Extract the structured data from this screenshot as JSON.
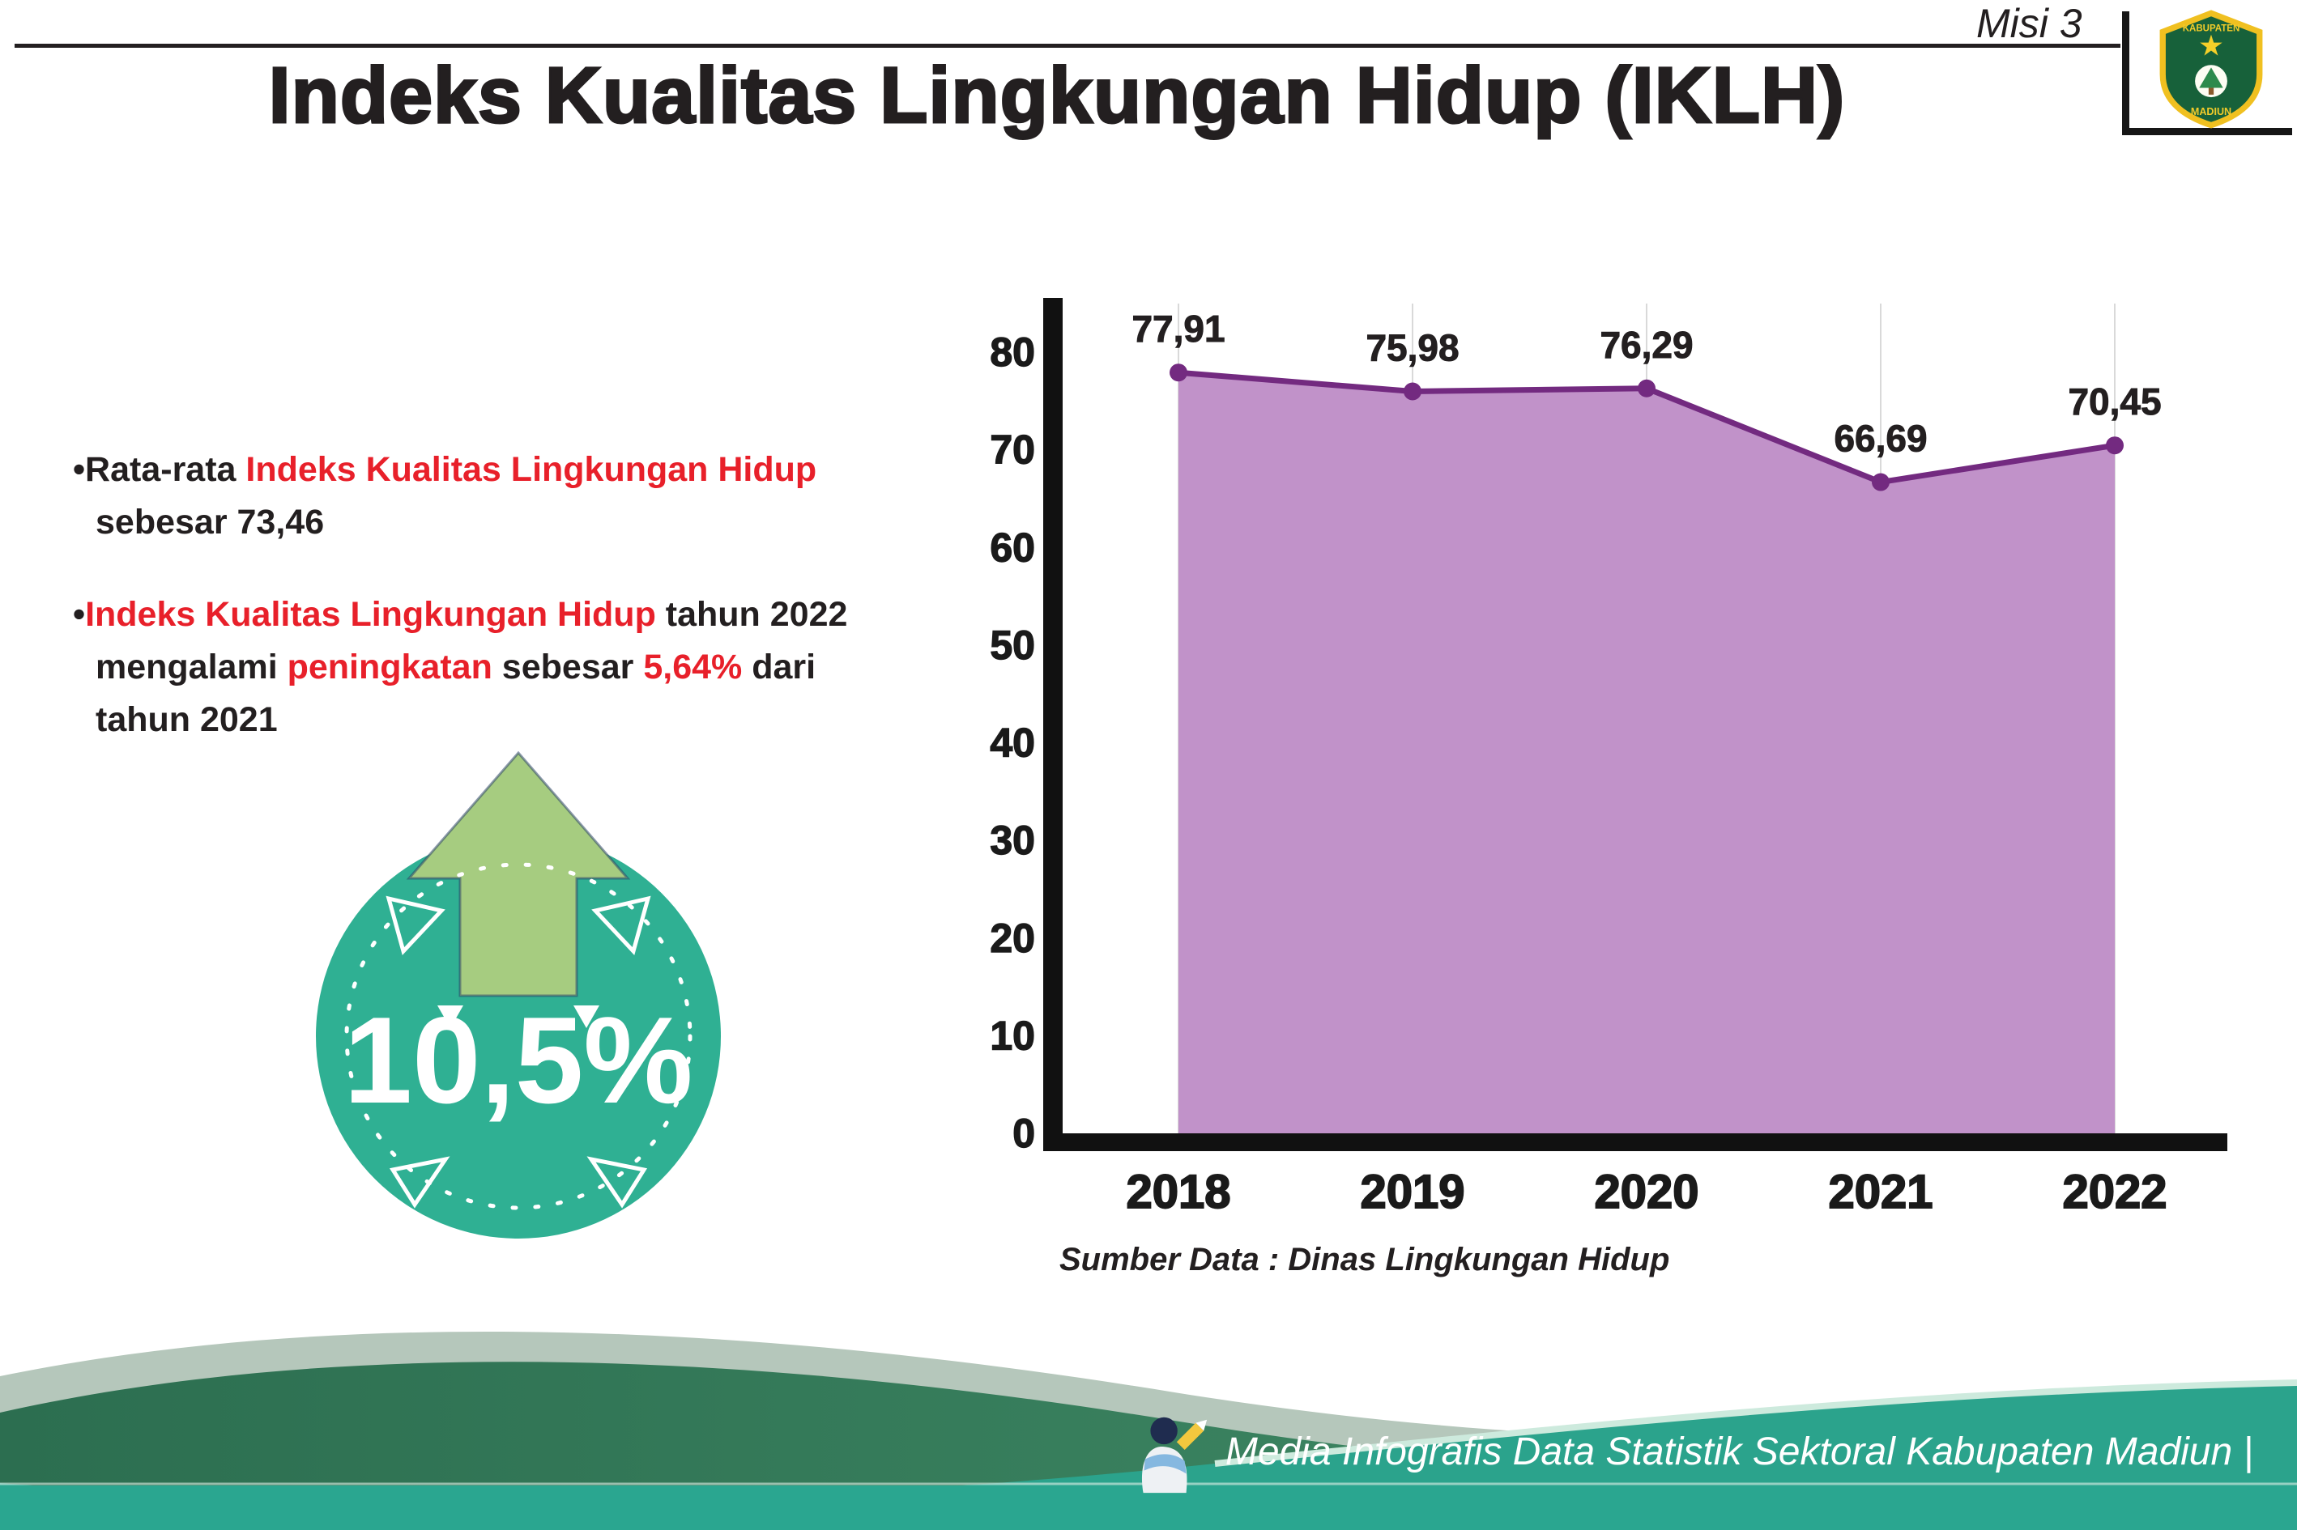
{
  "header": {
    "misi_label": "Misi 3",
    "title": "Indeks Kualitas Lingkungan Hidup (IKLH)"
  },
  "logo": {
    "region_top": "KABUPATEN",
    "region_bottom": "MADIUN"
  },
  "bullets": [
    {
      "segments": [
        {
          "t": "•Rata-rata ",
          "c": "#231f20"
        },
        {
          "t": "Indeks Kualitas Lingkungan Hidup",
          "c": "#e8202a"
        },
        {
          "t": "\nsebesar 73,46",
          "c": "#231f20"
        }
      ]
    },
    {
      "segments": [
        {
          "t": "•",
          "c": "#231f20"
        },
        {
          "t": "Indeks Kualitas Lingkungan Hidup",
          "c": "#e8202a"
        },
        {
          "t": " tahun 2022\nmengalami ",
          "c": "#231f20"
        },
        {
          "t": "peningkatan",
          "c": "#e8202a"
        },
        {
          "t": " sebesar ",
          "c": "#231f20"
        },
        {
          "t": "5,64%",
          "c": "#e8202a"
        },
        {
          "t": " dari\ntahun 2021",
          "c": "#231f20"
        }
      ]
    }
  ],
  "badge": {
    "value": "10,5%"
  },
  "chart_data": {
    "type": "area",
    "title": "Indeks Kualitas Lingkungan Hidup (IKLH)",
    "categories": [
      "2018",
      "2019",
      "2020",
      "2021",
      "2022"
    ],
    "values": [
      77.91,
      75.98,
      76.29,
      66.69,
      70.45
    ],
    "value_labels": [
      "77,91",
      "75,98",
      "76,29",
      "66,69",
      "70,45"
    ],
    "xlabel": "",
    "ylabel": "",
    "ylim": [
      0,
      80
    ],
    "ytick_step": 10,
    "ytick_labels": [
      "0",
      "10",
      "20",
      "30",
      "40",
      "50",
      "60",
      "70",
      "80"
    ],
    "grid": true,
    "legend": false,
    "fill_color": "#c192c9",
    "line_color": "#732a80"
  },
  "chart_source": "Sumber Data : Dinas Lingkungan Hidup",
  "footer": {
    "credit": "Media Infografis Data Statistik Sektoral Kabupaten Madiun |"
  },
  "colors": {
    "accent_red": "#e8202a",
    "text_black": "#231f20",
    "badge_teal": "#2fb093",
    "arrow_green": "#a6cc80",
    "chart_fill": "#c192c9",
    "chart_line": "#732a80",
    "footer_dark_green": "#2e7052",
    "footer_teal": "#2ba38c"
  }
}
